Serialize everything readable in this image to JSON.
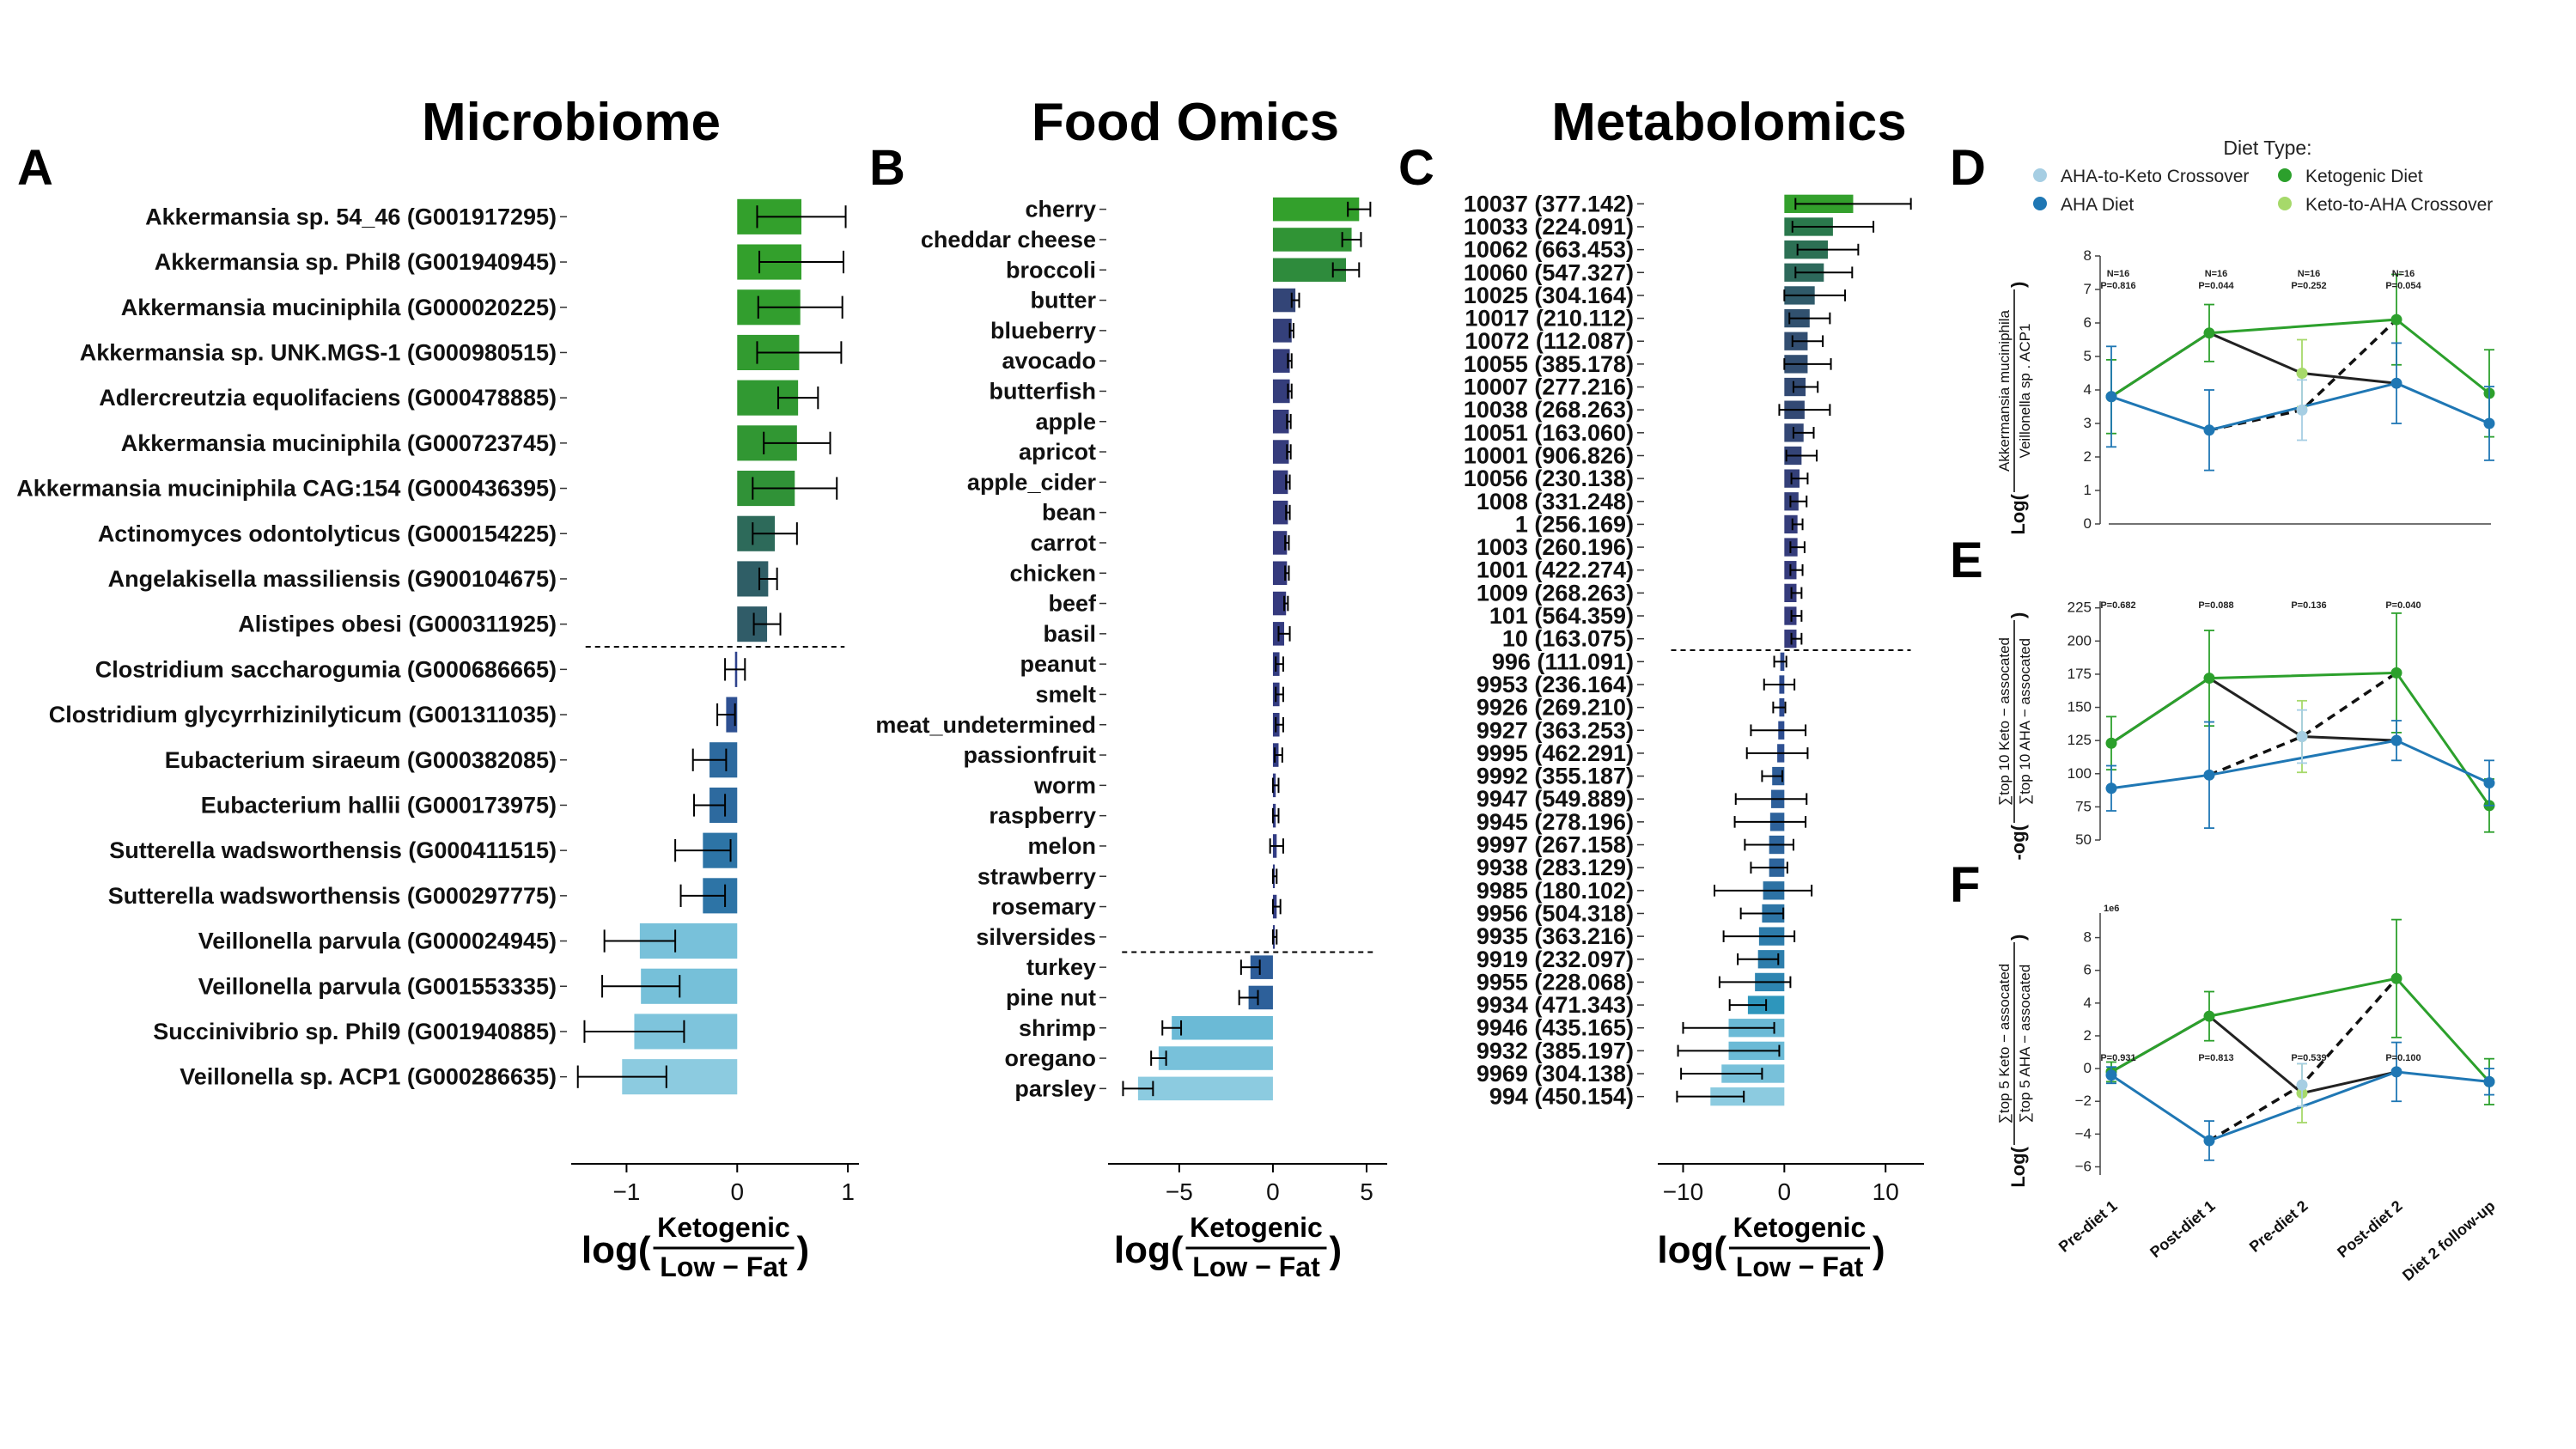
{
  "chart_data": [
    {
      "panel": "A",
      "type": "bar",
      "orientation": "horizontal",
      "title": "Microbiome",
      "xlabel_prefix": "log(",
      "xlabel_numerator": "Ketogenic",
      "xlabel_denominator": "Low − Fat",
      "xlabel_suffix": ")",
      "xlim": [
        -1.5,
        1.1
      ],
      "xticks": [
        -1,
        0,
        1
      ],
      "categories": [
        "Akkermansia sp. 54_46 (G001917295)",
        "Akkermansia sp. Phil8 (G001940945)",
        "Akkermansia muciniphila (G000020225)",
        "Akkermansia sp. UNK.MGS-1 (G000980515)",
        "Adlercreutzia equolifaciens (G000478885)",
        "Akkermansia muciniphila (G000723745)",
        "Akkermansia muciniphila CAG:154 (G000436395)",
        "Actinomyces odontolyticus (G000154225)",
        "Angelakisella massiliensis (G900104675)",
        "Alistipes obesi (G000311925)",
        "Clostridium saccharogumia (G000686665)",
        "Clostridium glycyrrhizinilyticum (G001311035)",
        "Eubacterium siraeum (G000382085)",
        "Eubacterium hallii (G000173975)",
        "Sutterella wadsworthensis (G000411515)",
        "Sutterella wadsworthensis (G000297775)",
        "Veillonella parvula (G000024945)",
        "Veillonella parvula (G001553335)",
        "Succinivibrio sp. Phil9 (G001940885)",
        "Veillonella sp. ACP1 (G000286635)"
      ],
      "values": [
        0.58,
        0.58,
        0.57,
        0.56,
        0.55,
        0.54,
        0.52,
        0.34,
        0.28,
        0.27,
        -0.02,
        -0.1,
        -0.25,
        -0.25,
        -0.31,
        -0.31,
        -0.88,
        -0.87,
        -0.93,
        -1.04
      ],
      "errors": [
        0.4,
        0.38,
        0.38,
        0.38,
        0.18,
        0.3,
        0.38,
        0.2,
        0.08,
        0.12,
        0.09,
        0.08,
        0.15,
        0.14,
        0.25,
        0.2,
        0.32,
        0.35,
        0.45,
        0.4
      ]
    },
    {
      "panel": "B",
      "type": "bar",
      "orientation": "horizontal",
      "title": "Food Omics",
      "xlabel_prefix": "log(",
      "xlabel_numerator": "Ketogenic",
      "xlabel_denominator": "Low − Fat",
      "xlabel_suffix": ")",
      "xlim": [
        -8.8,
        6.1
      ],
      "xticks": [
        -5,
        0,
        5
      ],
      "categories": [
        "cherry",
        "cheddar cheese",
        "broccoli",
        "butter",
        "blueberry",
        "avocado",
        "butterfish",
        "apple",
        "apricot",
        "apple_cider",
        "bean",
        "carrot",
        "chicken",
        "beef",
        "basil",
        "peanut",
        "smelt",
        "meat_undetermined",
        "passionfruit",
        "worm",
        "raspberry",
        "melon",
        "strawberry",
        "rosemary",
        "silversides",
        "turkey",
        "pine nut",
        "shrimp",
        "oregano",
        "parsley"
      ],
      "values": [
        4.6,
        4.2,
        3.9,
        1.2,
        1.0,
        0.9,
        0.9,
        0.85,
        0.85,
        0.8,
        0.8,
        0.75,
        0.75,
        0.7,
        0.6,
        0.35,
        0.35,
        0.35,
        0.3,
        0.15,
        0.15,
        0.2,
        0.1,
        0.2,
        0.1,
        -1.2,
        -1.3,
        -5.4,
        -6.1,
        -7.2
      ],
      "errors": [
        0.6,
        0.5,
        0.7,
        0.2,
        0.1,
        0.1,
        0.1,
        0.1,
        0.1,
        0.1,
        0.1,
        0.1,
        0.1,
        0.1,
        0.3,
        0.2,
        0.2,
        0.2,
        0.2,
        0.15,
        0.15,
        0.35,
        0.1,
        0.2,
        0.1,
        0.5,
        0.5,
        0.5,
        0.4,
        0.8
      ]
    },
    {
      "panel": "C",
      "type": "bar",
      "orientation": "horizontal",
      "title": "Metabolomics",
      "xlabel_prefix": "log(",
      "xlabel_numerator": "Ketogenic",
      "xlabel_denominator": "Low − Fat",
      "xlabel_suffix": ")",
      "xlim": [
        -12.5,
        13.8
      ],
      "xticks": [
        -10,
        0,
        10
      ],
      "categories": [
        "10037 (377.142)",
        "10033 (224.091)",
        "10062 (663.453)",
        "10060 (547.327)",
        "10025 (304.164)",
        "10017 (210.112)",
        "10072 (112.087)",
        "10055 (385.178)",
        "10007 (277.216)",
        "10038 (268.263)",
        "10051 (163.060)",
        "10001 (906.826)",
        "10056 (230.138)",
        "1008 (331.248)",
        "1 (256.169)",
        "1003 (260.196)",
        "1001 (422.274)",
        "1009 (268.263)",
        "101 (564.359)",
        "10 (163.075)",
        "996 (111.091)",
        "9953 (236.164)",
        "9926 (269.210)",
        "9927 (363.253)",
        "9995 (462.291)",
        "9992 (355.187)",
        "9947 (549.889)",
        "9945 (278.196)",
        "9997 (267.158)",
        "9938 (283.129)",
        "9985 (180.102)",
        "9956 (504.318)",
        "9935 (363.216)",
        "9919 (232.097)",
        "9955 (228.068)",
        "9934 (471.343)",
        "9946 (435.165)",
        "9932 (385.197)",
        "9969 (304.138)",
        "994 (450.154)"
      ],
      "values": [
        6.8,
        4.8,
        4.3,
        3.9,
        3.0,
        2.5,
        2.3,
        2.3,
        2.1,
        2.0,
        1.9,
        1.7,
        1.5,
        1.4,
        1.3,
        1.3,
        1.2,
        1.2,
        1.2,
        1.2,
        -0.4,
        -0.5,
        -0.5,
        -0.6,
        -0.7,
        -1.2,
        -1.3,
        -1.4,
        -1.5,
        -1.5,
        -2.1,
        -2.2,
        -2.5,
        -2.6,
        -2.9,
        -3.6,
        -5.5,
        -5.5,
        -6.2,
        -7.3
      ],
      "errors": [
        5.7,
        4.0,
        3.0,
        2.8,
        3.0,
        2.0,
        1.5,
        2.3,
        1.2,
        2.5,
        1.0,
        1.5,
        0.8,
        0.8,
        0.5,
        0.7,
        0.6,
        0.5,
        0.5,
        0.5,
        0.6,
        1.5,
        0.6,
        2.7,
        3.0,
        1.0,
        3.5,
        3.5,
        2.4,
        1.8,
        4.8,
        2.1,
        3.5,
        2.0,
        3.5,
        1.8,
        4.5,
        5.0,
        4.0,
        3.3
      ]
    },
    {
      "panel": "D",
      "type": "line",
      "ylim": [
        0,
        8
      ],
      "yticks": [
        0,
        1,
        2,
        3,
        4,
        5,
        6,
        7,
        8
      ],
      "ylabel_prefix": "Log(",
      "ylabel_numerator": "Akkermansia muciniphila",
      "ylabel_denominator": "Veillonella sp . ACP1",
      "ylabel_suffix": ")",
      "annotations": [
        {
          "x": 0,
          "n": "N=16",
          "p": "P=0.816"
        },
        {
          "x": 1,
          "n": "N=16",
          "p": "P=0.044"
        },
        {
          "x": 2,
          "n": "N=16",
          "p": "P=0.252"
        },
        {
          "x": 3,
          "n": "N=16",
          "p": "P=0.054"
        }
      ],
      "series": [
        {
          "name": "Ketogenic Diet",
          "color": "#2ca02c",
          "x": [
            0,
            1,
            3,
            4
          ],
          "values": [
            3.8,
            5.7,
            6.1,
            3.9
          ],
          "errors": [
            1.1,
            0.85,
            1.35,
            1.3
          ]
        },
        {
          "name": "AHA Diet",
          "color": "#1f77b4",
          "x": [
            0,
            1,
            3,
            4
          ],
          "values": [
            3.8,
            2.8,
            4.2,
            3.0
          ],
          "errors": [
            1.5,
            1.2,
            1.2,
            1.1
          ]
        },
        {
          "name": "Keto-to-AHA Crossover",
          "color": "#a6d96a",
          "x": [
            2
          ],
          "values": [
            4.5
          ],
          "errors": [
            1.0
          ]
        },
        {
          "name": "AHA-to-Keto Crossover",
          "color": "#a6cee3",
          "x": [
            2
          ],
          "values": [
            3.4
          ],
          "errors": [
            0.9
          ]
        }
      ],
      "connector_solid": [
        [
          0,
          3.8
        ],
        [
          1,
          5.7
        ],
        [
          2,
          4.5
        ],
        [
          3,
          4.2
        ]
      ],
      "connector_dashed": [
        [
          1,
          2.8
        ],
        [
          2,
          3.4
        ],
        [
          3,
          6.1
        ]
      ]
    },
    {
      "panel": "E",
      "type": "line",
      "ylim": [
        50,
        230
      ],
      "yticks": [
        50,
        75,
        100,
        125,
        150,
        175,
        200,
        225
      ],
      "ylabel_prefix": "-og(",
      "ylabel_numerator": "∑top 10 Keto − assocated",
      "ylabel_denominator": "∑top 10 AHA − assocated",
      "ylabel_suffix": ")",
      "annotations": [
        {
          "x": 0,
          "p": "P=0.682"
        },
        {
          "x": 1,
          "p": "P=0.088"
        },
        {
          "x": 2,
          "p": "P=0.136"
        },
        {
          "x": 3,
          "p": "P=0.040"
        }
      ],
      "series": [
        {
          "name": "Ketogenic Diet",
          "color": "#2ca02c",
          "x": [
            0,
            1,
            3,
            4
          ],
          "values": [
            123,
            172,
            176,
            76
          ],
          "errors": [
            20,
            36,
            45,
            20
          ]
        },
        {
          "name": "AHA Diet",
          "color": "#1f77b4",
          "x": [
            0,
            1,
            3,
            4
          ],
          "values": [
            89,
            99,
            125,
            93
          ],
          "errors": [
            17,
            40,
            15,
            17
          ]
        },
        {
          "name": "Keto-to-AHA Crossover",
          "color": "#a6d96a",
          "x": [
            2
          ],
          "values": [
            128
          ],
          "errors": [
            27
          ]
        },
        {
          "name": "AHA-to-Keto Crossover",
          "color": "#a6cee3",
          "x": [
            2
          ],
          "values": [
            128
          ],
          "errors": [
            20
          ]
        }
      ],
      "connector_solid": [
        [
          0,
          123
        ],
        [
          1,
          172
        ],
        [
          2,
          128
        ],
        [
          3,
          125
        ]
      ],
      "connector_dashed": [
        [
          1,
          99
        ],
        [
          2,
          128
        ],
        [
          3,
          176
        ]
      ]
    },
    {
      "panel": "F",
      "type": "line",
      "ylim": [
        -6.5,
        9.5
      ],
      "yticks": [
        -6,
        -4,
        -2,
        0,
        2,
        4,
        6,
        8
      ],
      "scale_note": "1e6",
      "ylabel_prefix": "Log(",
      "ylabel_numerator": "∑top 5 Keto − assocated",
      "ylabel_denominator": "∑top 5 AHA − assocated",
      "ylabel_suffix": ")",
      "annotations": [
        {
          "x": 0,
          "p": "P=0.931"
        },
        {
          "x": 1,
          "p": "P=0.813"
        },
        {
          "x": 2,
          "p": "P=0.539"
        },
        {
          "x": 3,
          "p": "P=0.100"
        }
      ],
      "series": [
        {
          "name": "Ketogenic Diet",
          "color": "#2ca02c",
          "x": [
            0,
            1,
            3,
            4
          ],
          "values": [
            -0.2,
            3.2,
            5.5,
            -0.8
          ],
          "errors": [
            0.6,
            1.5,
            3.6,
            1.4
          ]
        },
        {
          "name": "AHA Diet",
          "color": "#1f77b4",
          "x": [
            0,
            1,
            3,
            4
          ],
          "values": [
            -0.4,
            -4.4,
            -0.2,
            -0.8
          ],
          "errors": [
            0.5,
            1.2,
            1.8,
            0.8
          ]
        },
        {
          "name": "Keto-to-AHA Crossover",
          "color": "#a6d96a",
          "x": [
            2
          ],
          "values": [
            -1.5
          ],
          "errors": [
            1.8
          ]
        },
        {
          "name": "AHA-to-Keto Crossover",
          "color": "#a6cee3",
          "x": [
            2
          ],
          "values": [
            -1.0
          ],
          "errors": [
            1.3
          ]
        }
      ],
      "connector_solid": [
        [
          0,
          -0.2
        ],
        [
          1,
          3.2
        ],
        [
          2,
          -1.5
        ],
        [
          3,
          -0.2
        ]
      ],
      "connector_dashed": [
        [
          1,
          -4.4
        ],
        [
          2,
          -1.0
        ],
        [
          3,
          5.5
        ]
      ],
      "x_categories": [
        "Pre-diet 1",
        "Post-diet 1",
        "Pre-diet 2",
        "Post-diet 2",
        "Diet 2 follow-up"
      ]
    }
  ],
  "legend": {
    "title": "Diet Type:",
    "items": [
      {
        "label": "AHA-to-Keto Crossover",
        "color": "#a6cee3"
      },
      {
        "label": "Ketogenic Diet",
        "color": "#2ca02c"
      },
      {
        "label": "AHA Diet",
        "color": "#1f77b4"
      },
      {
        "label": "Keto-to-AHA Crossover",
        "color": "#a6d96a"
      }
    ]
  },
  "colors": {
    "palette": [
      "#33a02c",
      "#2a7a4a",
      "#305a6a",
      "#353a7d",
      "#2e3f8a",
      "#2d6ca0",
      "#2e97bd",
      "#6bbad6",
      "#8ccbe0"
    ]
  }
}
